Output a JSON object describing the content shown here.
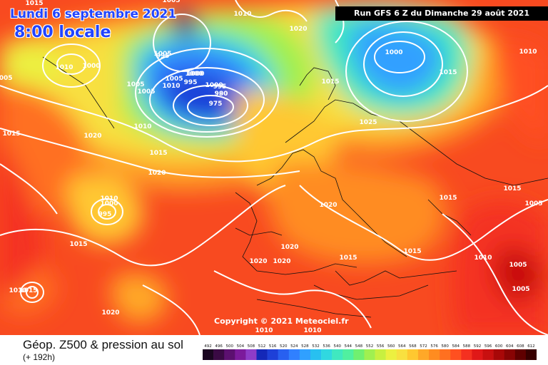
{
  "header": {
    "valid_date": "Lundi 6 septembre 2021",
    "valid_time": "8:00 locale",
    "run_info": "Run GFS 6 Z du Dimanche 29 août 2021"
  },
  "copyright": "Copyright © 2021 Meteociel.fr",
  "footer": {
    "product_title": "Géop. Z500 & pression au sol",
    "forecast_range": "(+ 192h)"
  },
  "color_scale": {
    "labels": [
      "492",
      "496",
      "500",
      "504",
      "508",
      "512",
      "516",
      "520",
      "524",
      "528",
      "532",
      "536",
      "540",
      "544",
      "548",
      "552",
      "556",
      "560",
      "564",
      "568",
      "572",
      "576",
      "580",
      "584",
      "588",
      "592",
      "596",
      "600",
      "604",
      "608",
      "612"
    ],
    "colors": [
      "#1a0620",
      "#3a0a44",
      "#5c1070",
      "#7c1a9c",
      "#8e3cc8",
      "#1428b8",
      "#1e40d8",
      "#2860f0",
      "#3080ff",
      "#30a0ff",
      "#28c0f0",
      "#30d8e0",
      "#40e8c0",
      "#50f0a0",
      "#70f070",
      "#a0f050",
      "#c8f040",
      "#ecf040",
      "#f8e040",
      "#ffc830",
      "#ffa828",
      "#ff8c20",
      "#ff7020",
      "#ff5020",
      "#f43020",
      "#e01818",
      "#c81010",
      "#a80808",
      "#880404",
      "#600000",
      "#380000"
    ]
  },
  "pressure_labels": [
    {
      "text": "1015"
    },
    {
      "text": "1005"
    },
    {
      "text": "1010"
    },
    {
      "text": "1020"
    },
    {
      "text": "1005"
    },
    {
      "text": "1000"
    },
    {
      "text": "1010"
    },
    {
      "text": "995"
    },
    {
      "text": "1000"
    },
    {
      "text": "1015"
    },
    {
      "text": "995"
    },
    {
      "text": "1000"
    },
    {
      "text": "1005"
    },
    {
      "text": "1005"
    },
    {
      "text": "1010"
    },
    {
      "text": "1005"
    },
    {
      "text": "1000"
    },
    {
      "text": "995"
    },
    {
      "text": "990"
    },
    {
      "text": "980"
    },
    {
      "text": "975"
    },
    {
      "text": "1015"
    },
    {
      "text": "1025"
    },
    {
      "text": "1010"
    },
    {
      "text": "1020"
    },
    {
      "text": "1015"
    },
    {
      "text": "1020"
    },
    {
      "text": "1015"
    },
    {
      "text": "1005"
    },
    {
      "text": "1010"
    },
    {
      "text": "1000"
    },
    {
      "text": "995"
    },
    {
      "text": "1015"
    },
    {
      "text": "1020"
    },
    {
      "text": "1020"
    },
    {
      "text": "1020"
    },
    {
      "text": "1020"
    },
    {
      "text": "1015"
    },
    {
      "text": "1015"
    },
    {
      "text": "1010"
    },
    {
      "text": "1005"
    },
    {
      "text": "1010"
    },
    {
      "text": "1000"
    },
    {
      "text": "1015"
    },
    {
      "text": "1020"
    },
    {
      "text": "1010"
    },
    {
      "text": "1010"
    },
    {
      "text": "1015"
    },
    {
      "text": "1005"
    },
    {
      "text": "1005"
    },
    {
      "text": "1015"
    },
    {
      "text": "1010"
    }
  ]
}
